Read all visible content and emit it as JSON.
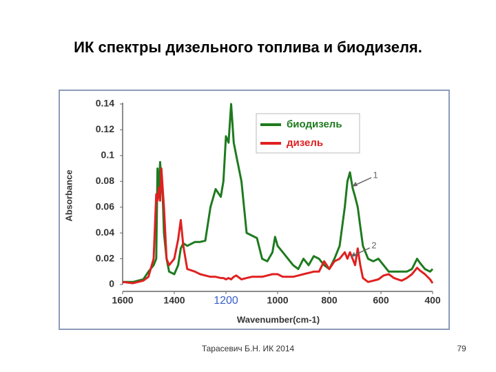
{
  "slide": {
    "title": "ИК спектры дизельного топлива и биодизеля.",
    "footer": "Тарасевич Б.Н. ИК 2014",
    "page_number": "79"
  },
  "chart_data": {
    "type": "line",
    "x_label": "Wavenumber(cm-1)",
    "y_label": "Absorbance",
    "xlim": [
      1600,
      400
    ],
    "ylim": [
      0,
      0.14
    ],
    "xticks": [
      1600,
      1400,
      1200,
      1000,
      800,
      600,
      400
    ],
    "yticks": [
      0,
      0.02,
      0.04,
      0.06,
      0.08,
      0.1,
      0.12,
      0.14
    ],
    "highlight_xtick": {
      "value": 1200,
      "color": "#3a5fc8"
    },
    "legend": "upper-right",
    "x": [
      1600,
      1560,
      1520,
      1500,
      1480,
      1470,
      1465,
      1460,
      1455,
      1450,
      1445,
      1440,
      1430,
      1420,
      1400,
      1385,
      1375,
      1365,
      1350,
      1320,
      1300,
      1280,
      1260,
      1240,
      1220,
      1210,
      1200,
      1190,
      1180,
      1170,
      1160,
      1140,
      1120,
      1100,
      1080,
      1060,
      1040,
      1020,
      1010,
      1000,
      980,
      960,
      940,
      920,
      900,
      880,
      860,
      840,
      820,
      800,
      780,
      760,
      740,
      730,
      720,
      710,
      700,
      690,
      680,
      670,
      650,
      630,
      610,
      590,
      570,
      550,
      520,
      500,
      480,
      460,
      450,
      430,
      410,
      400
    ],
    "series": [
      {
        "name": "биодизель",
        "color": "#1e7a1e",
        "values": [
          0.002,
          0.002,
          0.004,
          0.01,
          0.015,
          0.02,
          0.09,
          0.07,
          0.095,
          0.08,
          0.07,
          0.04,
          0.02,
          0.01,
          0.008,
          0.015,
          0.028,
          0.032,
          0.03,
          0.033,
          0.033,
          0.034,
          0.06,
          0.074,
          0.068,
          0.08,
          0.115,
          0.11,
          0.14,
          0.11,
          0.1,
          0.08,
          0.04,
          0.038,
          0.036,
          0.02,
          0.018,
          0.025,
          0.037,
          0.03,
          0.025,
          0.02,
          0.015,
          0.012,
          0.02,
          0.015,
          0.022,
          0.02,
          0.015,
          0.012,
          0.02,
          0.03,
          0.06,
          0.08,
          0.087,
          0.075,
          0.068,
          0.06,
          0.045,
          0.03,
          0.02,
          0.018,
          0.02,
          0.015,
          0.01,
          0.01,
          0.01,
          0.01,
          0.012,
          0.02,
          0.017,
          0.012,
          0.01,
          0.012
        ]
      },
      {
        "name": "дизель",
        "color": "#e02020",
        "values": [
          0.002,
          0.001,
          0.003,
          0.006,
          0.02,
          0.07,
          0.065,
          0.075,
          0.065,
          0.09,
          0.075,
          0.06,
          0.02,
          0.015,
          0.02,
          0.035,
          0.05,
          0.03,
          0.012,
          0.01,
          0.008,
          0.007,
          0.006,
          0.006,
          0.005,
          0.005,
          0.004,
          0.005,
          0.004,
          0.006,
          0.007,
          0.004,
          0.005,
          0.006,
          0.006,
          0.006,
          0.007,
          0.008,
          0.008,
          0.008,
          0.006,
          0.006,
          0.006,
          0.007,
          0.008,
          0.009,
          0.01,
          0.01,
          0.018,
          0.012,
          0.018,
          0.02,
          0.025,
          0.02,
          0.025,
          0.02,
          0.015,
          0.028,
          0.015,
          0.005,
          0.002,
          0.003,
          0.004,
          0.007,
          0.008,
          0.005,
          0.003,
          0.005,
          0.008,
          0.013,
          0.011,
          0.008,
          0.004,
          0.001
        ]
      }
    ],
    "annotations": [
      {
        "text": "1",
        "x": 621,
        "y": 0.0845
      },
      {
        "text": "2",
        "x": 627,
        "y": 0.03
      }
    ]
  }
}
